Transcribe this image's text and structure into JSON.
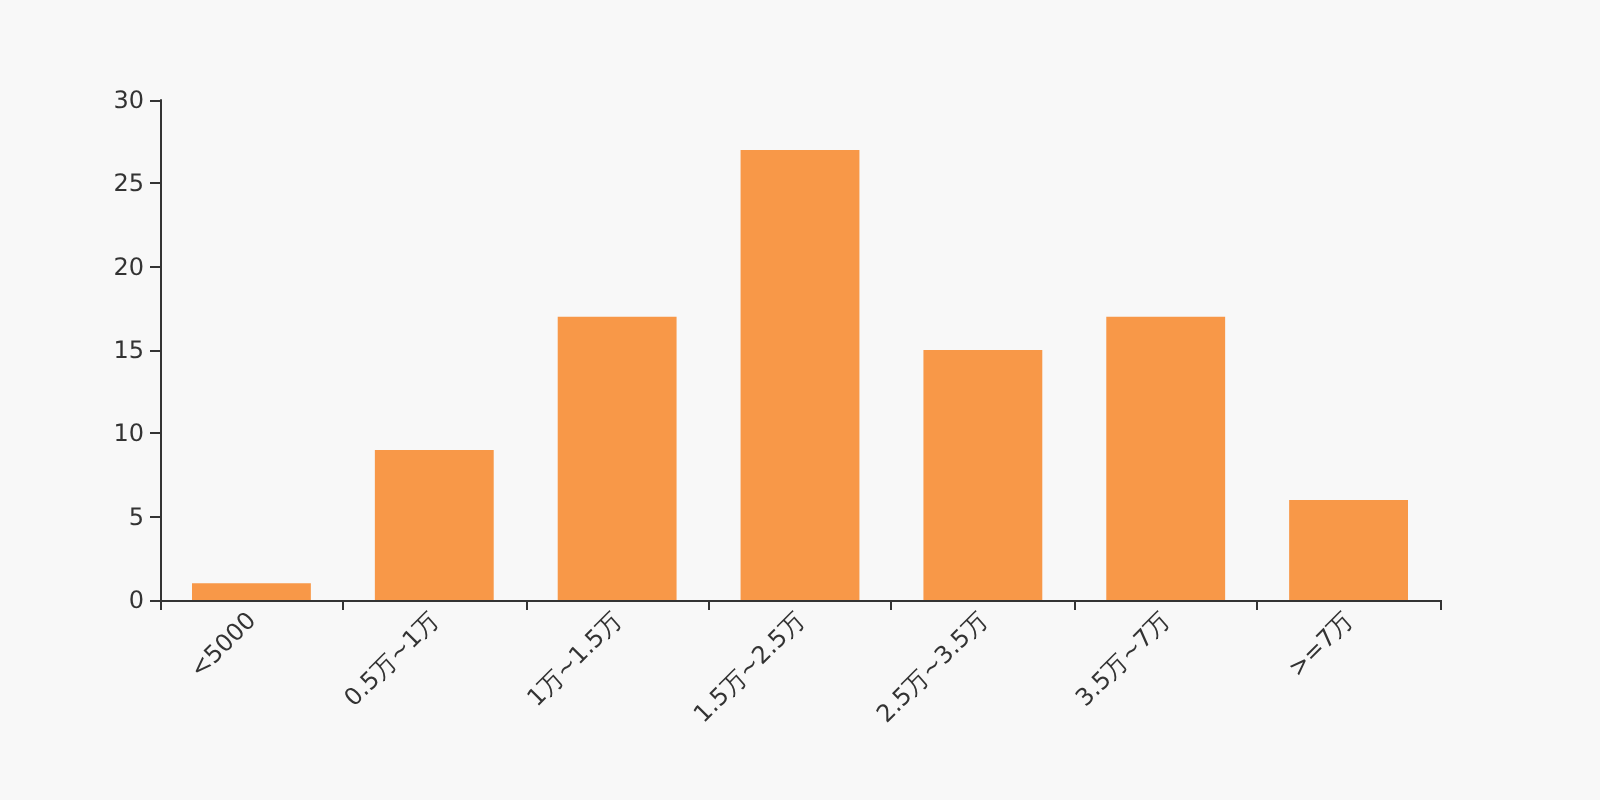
{
  "chart_data": {
    "type": "bar",
    "categories": [
      "<5000",
      "0.5万~1万",
      "1万~1.5万",
      "1.5万~2.5万",
      "2.5万~3.5万",
      "3.5万~7万",
      ">=7万"
    ],
    "values": [
      1,
      9,
      17,
      27,
      15,
      17,
      6
    ],
    "color": "#f89848",
    "ylim": [
      0,
      30
    ],
    "yticks": [
      0,
      5,
      10,
      15,
      20,
      25,
      30
    ],
    "grid": false
  }
}
